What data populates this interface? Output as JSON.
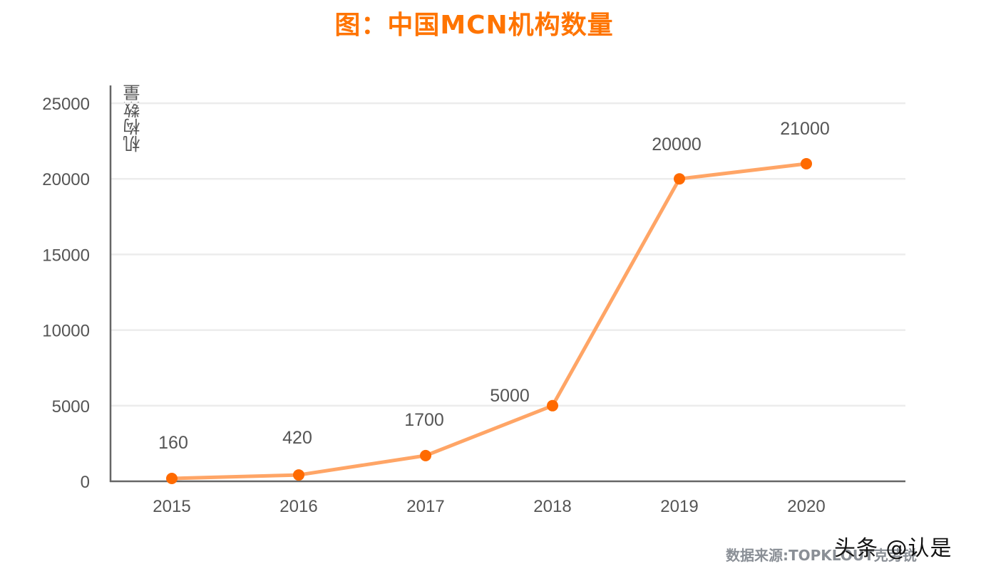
{
  "title": "图：中国MCN机构数量",
  "y_axis_label": "机构数量",
  "source": "数据来源:TOPKLOUT克劳锐",
  "watermark": "头条 @认是",
  "colors": {
    "title": "#ff7400",
    "line": "#ffa566",
    "marker": "#ff6a00",
    "grid": "#ececec",
    "axis": "#666666",
    "text": "#555555"
  },
  "chart_data": {
    "type": "line",
    "title": "图：中国MCN机构数量",
    "xlabel": "",
    "ylabel": "机构数量",
    "categories": [
      "2015",
      "2016",
      "2017",
      "2018",
      "2019",
      "2020"
    ],
    "series": [
      {
        "name": "机构数量",
        "values": [
          160,
          420,
          1700,
          5000,
          20000,
          21000
        ]
      }
    ],
    "data_labels": [
      "160",
      "420",
      "1700",
      "5000",
      "20000",
      "21000"
    ],
    "y_ticks": [
      "0",
      "5000",
      "10000",
      "15000",
      "20000",
      "25000"
    ],
    "ylim": [
      0,
      25000
    ],
    "grid": true,
    "legend": "none"
  }
}
